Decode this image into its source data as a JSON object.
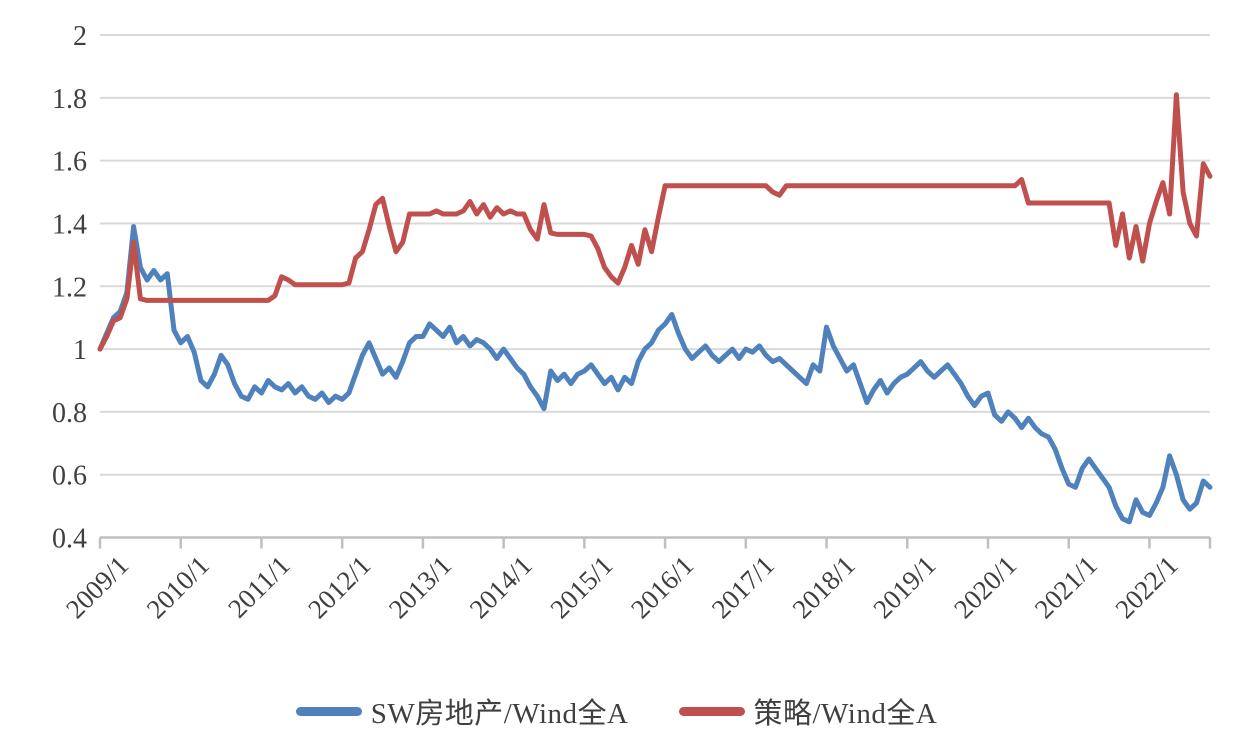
{
  "chart_data": {
    "type": "line",
    "title": "",
    "x_start": "2009/1",
    "x_end": "2022/10",
    "points_per_year": 12,
    "x_tick_labels": [
      "2009/1",
      "2010/1",
      "2011/1",
      "2012/1",
      "2013/1",
      "2014/1",
      "2015/1",
      "2016/1",
      "2017/1",
      "2018/1",
      "2019/1",
      "2020/1",
      "2021/1",
      "2022/1"
    ],
    "y_ticks": [
      0.4,
      0.6,
      0.8,
      1,
      1.2,
      1.4,
      1.6,
      1.8,
      2
    ],
    "y_tick_labels": [
      "0.4",
      "0.6",
      "0.8",
      "1",
      "1.2",
      "1.4",
      "1.6",
      "1.8",
      "2"
    ],
    "ylim": [
      0.4,
      2
    ],
    "grid": true,
    "legend_position": "bottom",
    "axis_text_color": "#3f3f3f",
    "grid_color": "#d9d9d9",
    "axis_line_color": "#bfbfbf",
    "series": [
      {
        "name": "SW房地产/Wind全A",
        "color": "#4F81BD",
        "values": [
          1.0,
          1.05,
          1.1,
          1.12,
          1.18,
          1.39,
          1.26,
          1.22,
          1.25,
          1.22,
          1.24,
          1.06,
          1.02,
          1.04,
          0.99,
          0.9,
          0.88,
          0.92,
          0.98,
          0.95,
          0.89,
          0.85,
          0.84,
          0.88,
          0.86,
          0.9,
          0.88,
          0.87,
          0.89,
          0.86,
          0.88,
          0.85,
          0.84,
          0.86,
          0.83,
          0.85,
          0.84,
          0.86,
          0.92,
          0.98,
          1.02,
          0.97,
          0.92,
          0.94,
          0.91,
          0.96,
          1.02,
          1.04,
          1.04,
          1.08,
          1.06,
          1.04,
          1.07,
          1.02,
          1.04,
          1.01,
          1.03,
          1.02,
          1.0,
          0.97,
          1.0,
          0.97,
          0.94,
          0.92,
          0.88,
          0.85,
          0.81,
          0.93,
          0.9,
          0.92,
          0.89,
          0.92,
          0.93,
          0.95,
          0.92,
          0.89,
          0.91,
          0.87,
          0.91,
          0.89,
          0.96,
          1.0,
          1.02,
          1.06,
          1.08,
          1.11,
          1.05,
          1.0,
          0.97,
          0.99,
          1.01,
          0.98,
          0.96,
          0.98,
          1.0,
          0.97,
          1.0,
          0.99,
          1.01,
          0.98,
          0.96,
          0.97,
          0.95,
          0.93,
          0.91,
          0.89,
          0.95,
          0.93,
          1.07,
          1.01,
          0.97,
          0.93,
          0.95,
          0.89,
          0.83,
          0.87,
          0.9,
          0.86,
          0.89,
          0.91,
          0.92,
          0.94,
          0.96,
          0.93,
          0.91,
          0.93,
          0.95,
          0.92,
          0.89,
          0.85,
          0.82,
          0.85,
          0.86,
          0.79,
          0.77,
          0.8,
          0.78,
          0.75,
          0.78,
          0.75,
          0.73,
          0.72,
          0.68,
          0.62,
          0.57,
          0.56,
          0.62,
          0.65,
          0.62,
          0.59,
          0.56,
          0.5,
          0.46,
          0.45,
          0.52,
          0.48,
          0.47,
          0.51,
          0.56,
          0.66,
          0.6,
          0.52,
          0.49,
          0.51,
          0.58,
          0.56
        ]
      },
      {
        "name": "策略/Wind全A",
        "color": "#C0504D",
        "values": [
          1.0,
          1.04,
          1.09,
          1.1,
          1.16,
          1.34,
          1.16,
          1.155,
          1.155,
          1.155,
          1.155,
          1.155,
          1.155,
          1.155,
          1.155,
          1.155,
          1.155,
          1.155,
          1.155,
          1.155,
          1.155,
          1.155,
          1.155,
          1.155,
          1.155,
          1.155,
          1.17,
          1.23,
          1.22,
          1.205,
          1.205,
          1.205,
          1.205,
          1.205,
          1.205,
          1.205,
          1.205,
          1.21,
          1.29,
          1.31,
          1.38,
          1.46,
          1.48,
          1.39,
          1.31,
          1.34,
          1.43,
          1.43,
          1.43,
          1.43,
          1.44,
          1.43,
          1.43,
          1.43,
          1.44,
          1.47,
          1.43,
          1.46,
          1.42,
          1.45,
          1.43,
          1.44,
          1.43,
          1.43,
          1.38,
          1.35,
          1.46,
          1.37,
          1.365,
          1.365,
          1.365,
          1.365,
          1.365,
          1.36,
          1.32,
          1.26,
          1.23,
          1.21,
          1.26,
          1.33,
          1.27,
          1.38,
          1.31,
          1.42,
          1.52,
          1.52,
          1.52,
          1.52,
          1.52,
          1.52,
          1.52,
          1.52,
          1.52,
          1.52,
          1.52,
          1.52,
          1.52,
          1.52,
          1.52,
          1.52,
          1.5,
          1.49,
          1.52,
          1.52,
          1.52,
          1.52,
          1.52,
          1.52,
          1.52,
          1.52,
          1.52,
          1.52,
          1.52,
          1.52,
          1.52,
          1.52,
          1.52,
          1.52,
          1.52,
          1.52,
          1.52,
          1.52,
          1.52,
          1.52,
          1.52,
          1.52,
          1.52,
          1.52,
          1.52,
          1.52,
          1.52,
          1.52,
          1.52,
          1.52,
          1.52,
          1.52,
          1.52,
          1.54,
          1.465,
          1.465,
          1.465,
          1.465,
          1.465,
          1.465,
          1.465,
          1.465,
          1.465,
          1.465,
          1.465,
          1.465,
          1.465,
          1.33,
          1.43,
          1.29,
          1.39,
          1.28,
          1.4,
          1.47,
          1.53,
          1.43,
          1.81,
          1.5,
          1.4,
          1.36,
          1.59,
          1.55
        ]
      }
    ]
  },
  "legend": {
    "items": [
      {
        "label": "SW房地产/Wind全A",
        "color": "#4F81BD"
      },
      {
        "label": "策略/Wind全A",
        "color": "#C0504D"
      }
    ]
  }
}
